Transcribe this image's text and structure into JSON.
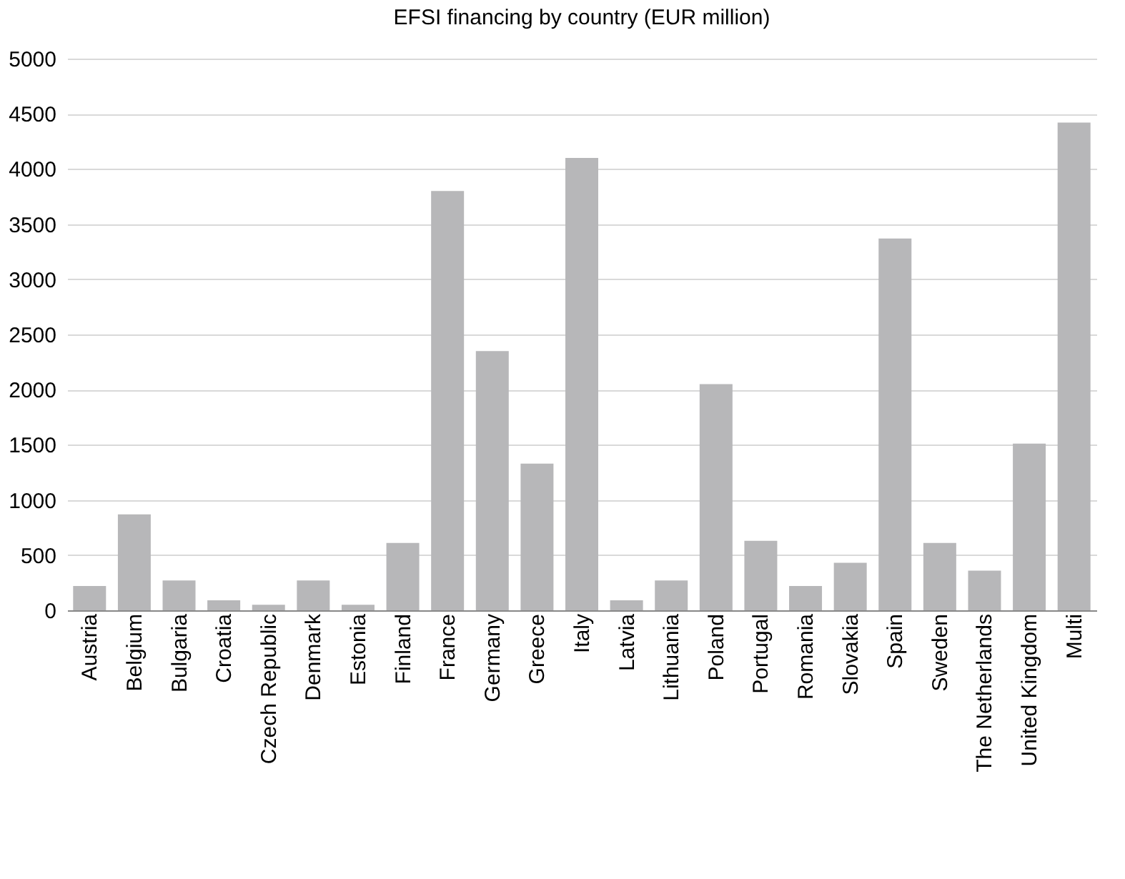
{
  "chart_data": {
    "type": "bar",
    "title": "EFSI financing by country (EUR million)",
    "categories": [
      "Austria",
      "Belgium",
      "Bulgaria",
      "Croatia",
      "Czech Republic",
      "Denmark",
      "Estonia",
      "Finland",
      "France",
      "Germany",
      "Greece",
      "Italy",
      "Latvia",
      "Lithuania",
      "Poland",
      "Portugal",
      "Romania",
      "Slovakia",
      "Spain",
      "Sweden",
      "The Netherlands",
      "United Kingdom",
      "Multi"
    ],
    "values": [
      220,
      870,
      270,
      90,
      50,
      270,
      50,
      610,
      3800,
      2350,
      1330,
      4100,
      90,
      270,
      2050,
      630,
      220,
      430,
      3370,
      610,
      360,
      1510,
      4420
    ],
    "color": "#b7b7b9",
    "ylim": [
      0,
      5000
    ],
    "yticks": [
      0,
      500,
      1000,
      1500,
      2000,
      2500,
      3000,
      3500,
      4000,
      4500,
      5000
    ],
    "grid": "y"
  }
}
